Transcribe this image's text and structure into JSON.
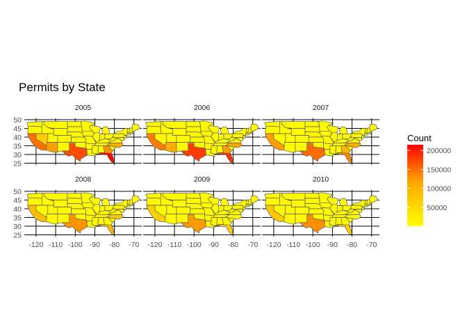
{
  "chart_data": {
    "type": "choropleth-map",
    "title": "Permits by State",
    "facets": [
      "2005",
      "2006",
      "2007",
      "2008",
      "2009",
      "2010"
    ],
    "x_ticks": [
      -120,
      -110,
      -100,
      -90,
      -80,
      -70
    ],
    "x_tick_labels": [
      "-120",
      "-110",
      "-100",
      "-90",
      "-80",
      "-70"
    ],
    "y_ticks": [
      25,
      30,
      35,
      40,
      45,
      50
    ],
    "y_tick_labels": [
      "25",
      "30",
      "35",
      "40",
      "45",
      "50"
    ],
    "xlim": [
      -126,
      -66
    ],
    "ylim": [
      24,
      50
    ],
    "legend": {
      "title": "Count",
      "position": "right",
      "range": [
        0,
        215000
      ],
      "breaks": [
        50000,
        100000,
        150000,
        200000
      ],
      "break_labels": [
        "50000",
        "100000",
        "150000",
        "200000"
      ],
      "low_color": "#ffff00",
      "high_color": "#ff0000"
    },
    "values": {
      "2005": {
        "Florida": 210000,
        "Texas": 150000,
        "California": 120000,
        "Arizona": 80000,
        "Georgia": 90000,
        "North Carolina": 70000,
        "Nevada": 45000
      },
      "2006": {
        "Florida": 175000,
        "Texas": 165000,
        "California": 110000,
        "Arizona": 70000,
        "Georgia": 80000,
        "North Carolina": 75000
      },
      "2007": {
        "Texas": 125000,
        "Florida": 100000,
        "California": 80000,
        "Georgia": 60000,
        "North Carolina": 70000
      },
      "2008": {
        "Texas": 90000,
        "Florida": 60000,
        "California": 55000,
        "North Carolina": 50000
      },
      "2009": {
        "Texas": 85000,
        "Florida": 40000,
        "California": 40000
      },
      "2010": {
        "Texas": 95000,
        "Florida": 45000,
        "California": 45000
      }
    }
  }
}
